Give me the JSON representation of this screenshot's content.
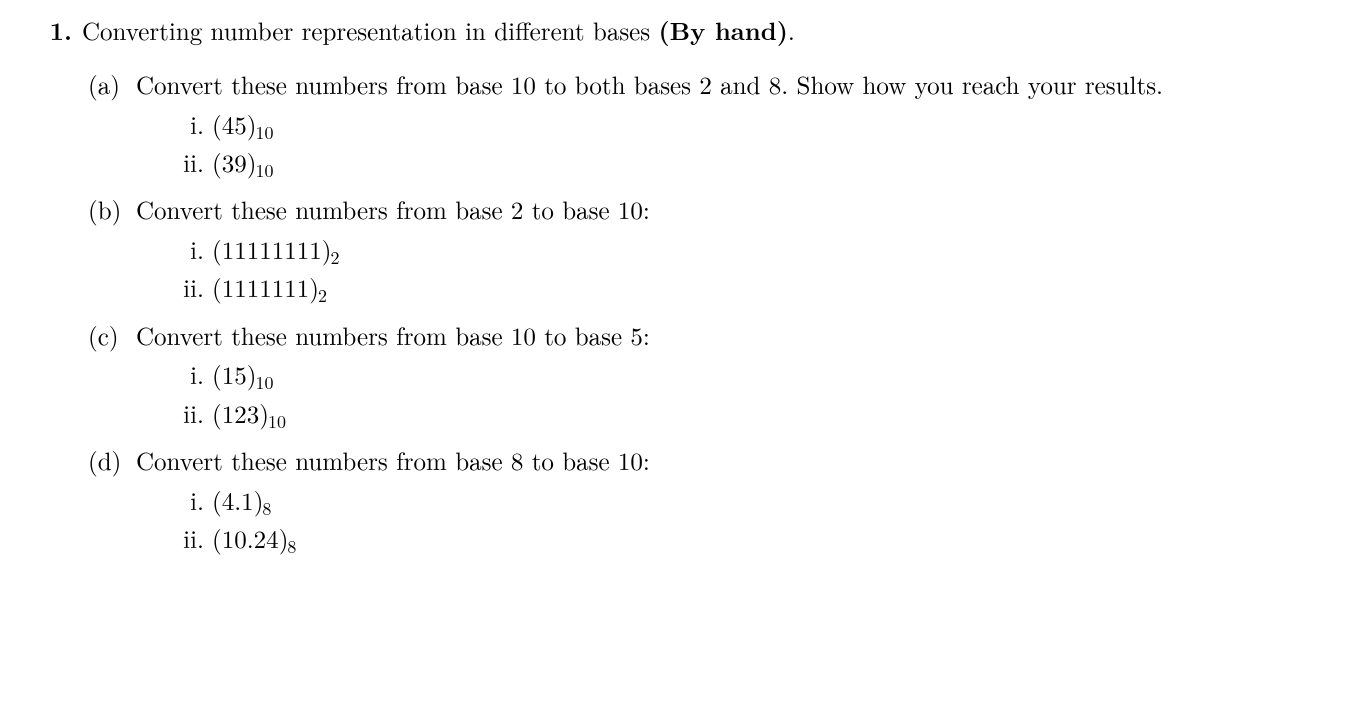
{
  "question": {
    "number": "1.",
    "title_plain": "Converting number representation in different bases ",
    "title_bold": "(By hand)",
    "title_tail": "."
  },
  "parts": [
    {
      "label": "(a)",
      "text": "Convert these numbers from base 10 to both bases 2 and 8. Show how you reach your results.",
      "subs": [
        {
          "label": "i.",
          "open": "(",
          "val": "45",
          "close": ")",
          "sub": "10"
        },
        {
          "label": "ii.",
          "open": "(",
          "val": "39",
          "close": ")",
          "sub": "10"
        }
      ]
    },
    {
      "label": "(b)",
      "text": "Convert these numbers from base 2 to base 10:",
      "subs": [
        {
          "label": "i.",
          "open": "(",
          "val": "11111111",
          "close": ")",
          "sub": "2"
        },
        {
          "label": "ii.",
          "open": "(",
          "val": "1111111",
          "close": ")",
          "sub": "2"
        }
      ]
    },
    {
      "label": "(c)",
      "text": "Convert these numbers from base 10 to base 5:",
      "subs": [
        {
          "label": "i.",
          "open": "(",
          "val": "15",
          "close": ")",
          "sub": "10"
        },
        {
          "label": "ii.",
          "open": "(",
          "val": "123",
          "close": ")",
          "sub": "10"
        }
      ]
    },
    {
      "label": "(d)",
      "text": "Convert these numbers from base 8 to base 10:",
      "subs": [
        {
          "label": "i.",
          "open": "(",
          "val": "4.1",
          "close": ")",
          "sub": "8"
        },
        {
          "label": "ii.",
          "open": "(",
          "val": "10.24",
          "close": ")",
          "sub": "8"
        }
      ]
    }
  ]
}
